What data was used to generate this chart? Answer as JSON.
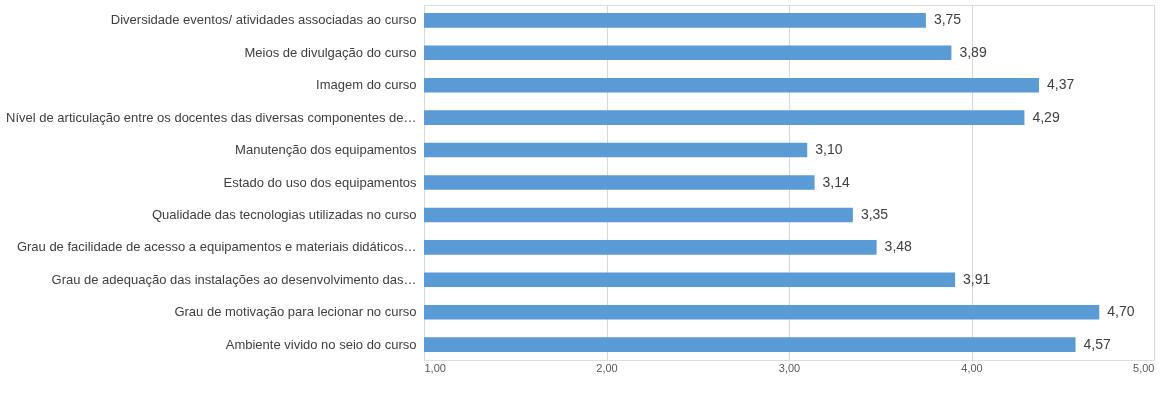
{
  "chart_data": {
    "type": "bar",
    "orientation": "horizontal",
    "categories": [
      "Diversidade eventos/ atividades associadas ao curso",
      "Meios de divulgação do curso",
      "Imagem do curso",
      "Nível de articulação entre os docentes das diversas componentes de…",
      "Manutenção dos equipamentos",
      "Estado do uso dos equipamentos",
      "Qualidade das tecnologias utilizadas no curso",
      "Grau de facilidade de acesso a equipamentos e materiais didáticos…",
      "Grau de adequação das instalações ao desenvolvimento das…",
      "Grau de motivação para lecionar no curso",
      "Ambiente vivido no seio do curso"
    ],
    "values": [
      3.75,
      3.89,
      4.37,
      4.29,
      3.1,
      3.14,
      3.35,
      3.48,
      3.91,
      4.7,
      4.57
    ],
    "value_labels": [
      "3,75",
      "3,89",
      "4,37",
      "4,29",
      "3,10",
      "3,14",
      "3,35",
      "3,48",
      "3,91",
      "4,70",
      "4,57"
    ],
    "color": "#5b9bd5",
    "xlim": [
      1,
      5
    ],
    "xticks": [
      {
        "value": 1,
        "label": "1,00"
      },
      {
        "value": 2,
        "label": "2,00"
      },
      {
        "value": 3,
        "label": "3,00"
      },
      {
        "value": 4,
        "label": "4,00"
      },
      {
        "value": 5,
        "label": "5,00"
      }
    ],
    "grid": "x"
  }
}
